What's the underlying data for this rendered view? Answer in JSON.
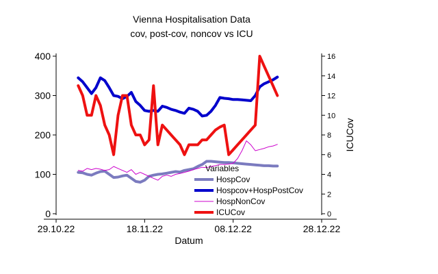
{
  "chart_data": {
    "type": "line",
    "title": "Vienna Hospitalisation Data",
    "subtitle": "cov, post-cov, noncov vs ICU",
    "xlabel": "Datum",
    "ylabel_left": "",
    "ylabel_right": "ICUCov",
    "x_ticks": [
      "29.10.22",
      "18.11.22",
      "08.12.22",
      "28.12.22"
    ],
    "x_tick_days": [
      0,
      20,
      40,
      60
    ],
    "xlim_days": [
      0,
      60
    ],
    "ylim_left": [
      0,
      400
    ],
    "y_ticks_left": [
      0,
      100,
      200,
      300,
      400
    ],
    "ylim_right": [
      0,
      16
    ],
    "y_ticks_right": [
      0,
      2,
      4,
      6,
      8,
      10,
      12,
      14,
      16
    ],
    "legend_title": "Variables",
    "legend_position": "bottom-right",
    "series": [
      {
        "name": "HospCov",
        "axis": "left",
        "color": "#7b7bbf",
        "width": 4,
        "points": [
          [
            5,
            105
          ],
          [
            6,
            104
          ],
          [
            7,
            100
          ],
          [
            8,
            98
          ],
          [
            9,
            103
          ],
          [
            10,
            107
          ],
          [
            11,
            108
          ],
          [
            12,
            100
          ],
          [
            13,
            92
          ],
          [
            14,
            93
          ],
          [
            15,
            96
          ],
          [
            16,
            98
          ],
          [
            17,
            90
          ],
          [
            18,
            82
          ],
          [
            19,
            80
          ],
          [
            20,
            85
          ],
          [
            21,
            95
          ],
          [
            22,
            98
          ],
          [
            23,
            100
          ],
          [
            24,
            101
          ],
          [
            25,
            103
          ],
          [
            26,
            105
          ],
          [
            27,
            107
          ],
          [
            28,
            106
          ],
          [
            29,
            110
          ],
          [
            30,
            112
          ],
          [
            31,
            114
          ],
          [
            32,
            120
          ],
          [
            33,
            125
          ],
          [
            34,
            133
          ],
          [
            35,
            133
          ],
          [
            36,
            132
          ],
          [
            37,
            131
          ],
          [
            38,
            130
          ],
          [
            39,
            130
          ],
          [
            40,
            129
          ],
          [
            41,
            128
          ],
          [
            42,
            127
          ],
          [
            43,
            126
          ],
          [
            44,
            125
          ],
          [
            45,
            124
          ],
          [
            46,
            123
          ],
          [
            47,
            122
          ],
          [
            48,
            122
          ],
          [
            49,
            121
          ],
          [
            50,
            121
          ]
        ]
      },
      {
        "name": "Hospcov+HospPostCov",
        "axis": "left",
        "color": "#0000cc",
        "width": 4,
        "points": [
          [
            5,
            345
          ],
          [
            6,
            335
          ],
          [
            7,
            320
          ],
          [
            8,
            305
          ],
          [
            9,
            320
          ],
          [
            10,
            345
          ],
          [
            11,
            338
          ],
          [
            12,
            320
          ],
          [
            13,
            300
          ],
          [
            14,
            298
          ],
          [
            15,
            292
          ],
          [
            16,
            298
          ],
          [
            17,
            308
          ],
          [
            18,
            285
          ],
          [
            19,
            275
          ],
          [
            20,
            262
          ],
          [
            21,
            260
          ],
          [
            22,
            262
          ],
          [
            23,
            260
          ],
          [
            24,
            273
          ],
          [
            25,
            270
          ],
          [
            26,
            265
          ],
          [
            27,
            262
          ],
          [
            28,
            258
          ],
          [
            29,
            255
          ],
          [
            30,
            268
          ],
          [
            31,
            265
          ],
          [
            32,
            260
          ],
          [
            33,
            248
          ],
          [
            34,
            250
          ],
          [
            35,
            260
          ],
          [
            36,
            275
          ],
          [
            37,
            295
          ],
          [
            38,
            293
          ],
          [
            39,
            292
          ],
          [
            40,
            290
          ],
          [
            41,
            290
          ],
          [
            42,
            289
          ],
          [
            43,
            288
          ],
          [
            44,
            287
          ],
          [
            45,
            300
          ],
          [
            46,
            322
          ],
          [
            47,
            330
          ],
          [
            48,
            335
          ],
          [
            49,
            340
          ],
          [
            50,
            347
          ]
        ]
      },
      {
        "name": "HospNonCov",
        "axis": "left",
        "color": "#cc00cc",
        "width": 1,
        "points": [
          [
            5,
            110
          ],
          [
            6,
            108
          ],
          [
            7,
            115
          ],
          [
            8,
            112
          ],
          [
            9,
            115
          ],
          [
            10,
            113
          ],
          [
            11,
            110
          ],
          [
            12,
            112
          ],
          [
            13,
            120
          ],
          [
            14,
            115
          ],
          [
            15,
            110
          ],
          [
            16,
            105
          ],
          [
            17,
            112
          ],
          [
            18,
            100
          ],
          [
            19,
            105
          ],
          [
            20,
            100
          ],
          [
            21,
            95
          ],
          [
            22,
            90
          ],
          [
            23,
            85
          ],
          [
            24,
            95
          ],
          [
            25,
            98
          ],
          [
            26,
            95
          ],
          [
            27,
            100
          ],
          [
            28,
            102
          ],
          [
            29,
            105
          ],
          [
            30,
            108
          ],
          [
            31,
            112
          ],
          [
            32,
            115
          ],
          [
            33,
            118
          ],
          [
            34,
            117
          ],
          [
            35,
            120
          ],
          [
            36,
            122
          ],
          [
            37,
            125
          ],
          [
            38,
            125
          ],
          [
            39,
            126
          ],
          [
            40,
            128
          ],
          [
            41,
            140
          ],
          [
            42,
            160
          ],
          [
            43,
            185
          ],
          [
            44,
            175
          ],
          [
            45,
            160
          ],
          [
            46,
            163
          ],
          [
            47,
            166
          ],
          [
            48,
            170
          ],
          [
            49,
            172
          ],
          [
            50,
            176
          ]
        ]
      },
      {
        "name": "ICUCov",
        "axis": "right",
        "color": "#ee1111",
        "width": 4,
        "points": [
          [
            5,
            13
          ],
          [
            6,
            12
          ],
          [
            7,
            10
          ],
          [
            8,
            10
          ],
          [
            9,
            12
          ],
          [
            10,
            11
          ],
          [
            11,
            9
          ],
          [
            12,
            8
          ],
          [
            13,
            6
          ],
          [
            14,
            10
          ],
          [
            15,
            12
          ],
          [
            16,
            12
          ],
          [
            17,
            9
          ],
          [
            18,
            8
          ],
          [
            19,
            8
          ],
          [
            20,
            7
          ],
          [
            21,
            7.5
          ],
          [
            22,
            13
          ],
          [
            23,
            7
          ],
          [
            24,
            9
          ],
          [
            25,
            8.5
          ],
          [
            26,
            8
          ],
          [
            27,
            7.5
          ],
          [
            28,
            7
          ],
          [
            29,
            6
          ],
          [
            30,
            7
          ],
          [
            31,
            7
          ],
          [
            32,
            7
          ],
          [
            33,
            7.5
          ],
          [
            34,
            7.5
          ],
          [
            35,
            8
          ],
          [
            36,
            8.5
          ],
          [
            37,
            8.8
          ],
          [
            38,
            9
          ],
          [
            39,
            6
          ],
          [
            40,
            6.5
          ],
          [
            41,
            7
          ],
          [
            42,
            7.5
          ],
          [
            43,
            8
          ],
          [
            44,
            8.5
          ],
          [
            45,
            9
          ],
          [
            46,
            16
          ],
          [
            47,
            15
          ],
          [
            48,
            14
          ],
          [
            49,
            13
          ],
          [
            50,
            12
          ]
        ]
      }
    ]
  }
}
